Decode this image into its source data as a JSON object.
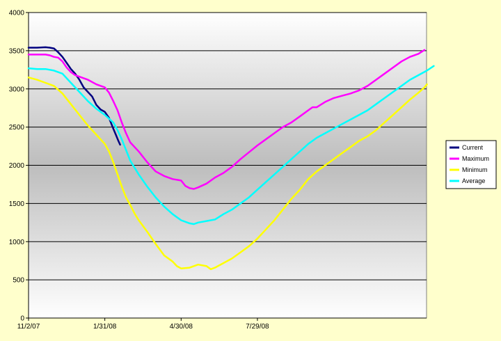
{
  "chart_data": {
    "type": "line",
    "title": "",
    "xlabel": "",
    "ylabel": "",
    "ylim": [
      0,
      4000
    ],
    "yticks": [
      0,
      500,
      1000,
      1500,
      2000,
      2500,
      3000,
      3500,
      4000
    ],
    "xticks": [
      {
        "label": "11/2/07",
        "day": 0
      },
      {
        "label": "1/31/08",
        "day": 90
      },
      {
        "label": "4/30/08",
        "day": 180
      },
      {
        "label": "7/29/08",
        "day": 270
      }
    ],
    "xlim_days": [
      0,
      380
    ],
    "grid": "horizontal",
    "legend_position": "right",
    "series": [
      {
        "name": "Current",
        "color": "#000080",
        "points": [
          [
            0,
            3540
          ],
          [
            10,
            3540
          ],
          [
            20,
            3545
          ],
          [
            25,
            3540
          ],
          [
            30,
            3530
          ],
          [
            35,
            3480
          ],
          [
            40,
            3420
          ],
          [
            45,
            3340
          ],
          [
            50,
            3260
          ],
          [
            55,
            3200
          ],
          [
            60,
            3120
          ],
          [
            65,
            3020
          ],
          [
            70,
            2960
          ],
          [
            75,
            2900
          ],
          [
            80,
            2790
          ],
          [
            85,
            2730
          ],
          [
            90,
            2700
          ],
          [
            95,
            2620
          ],
          [
            100,
            2480
          ],
          [
            103,
            2400
          ],
          [
            106,
            2320
          ],
          [
            108,
            2270
          ]
        ]
      },
      {
        "name": "Maximum",
        "color": "#ff00ff",
        "points": [
          [
            0,
            3450
          ],
          [
            10,
            3450
          ],
          [
            20,
            3450
          ],
          [
            25,
            3440
          ],
          [
            30,
            3420
          ],
          [
            35,
            3410
          ],
          [
            40,
            3360
          ],
          [
            45,
            3280
          ],
          [
            50,
            3220
          ],
          [
            55,
            3180
          ],
          [
            60,
            3160
          ],
          [
            70,
            3120
          ],
          [
            80,
            3060
          ],
          [
            90,
            3020
          ],
          [
            95,
            2950
          ],
          [
            100,
            2840
          ],
          [
            105,
            2720
          ],
          [
            110,
            2560
          ],
          [
            115,
            2420
          ],
          [
            120,
            2300
          ],
          [
            130,
            2180
          ],
          [
            140,
            2040
          ],
          [
            150,
            1920
          ],
          [
            160,
            1860
          ],
          [
            170,
            1820
          ],
          [
            180,
            1800
          ],
          [
            185,
            1730
          ],
          [
            190,
            1700
          ],
          [
            195,
            1690
          ],
          [
            200,
            1710
          ],
          [
            210,
            1760
          ],
          [
            220,
            1840
          ],
          [
            230,
            1900
          ],
          [
            240,
            1980
          ],
          [
            250,
            2080
          ],
          [
            260,
            2170
          ],
          [
            270,
            2260
          ],
          [
            280,
            2340
          ],
          [
            290,
            2420
          ],
          [
            300,
            2500
          ],
          [
            310,
            2560
          ],
          [
            320,
            2640
          ],
          [
            330,
            2720
          ],
          [
            335,
            2760
          ],
          [
            340,
            2760
          ],
          [
            350,
            2830
          ],
          [
            360,
            2880
          ],
          [
            370,
            2910
          ],
          [
            380,
            2940
          ],
          [
            390,
            2980
          ],
          [
            400,
            3040
          ],
          [
            410,
            3120
          ],
          [
            420,
            3200
          ],
          [
            430,
            3280
          ],
          [
            440,
            3360
          ],
          [
            450,
            3420
          ],
          [
            460,
            3460
          ],
          [
            467,
            3510
          ]
        ]
      },
      {
        "name": "Minimum",
        "color": "#ffff00",
        "points": [
          [
            0,
            3150
          ],
          [
            10,
            3120
          ],
          [
            20,
            3080
          ],
          [
            30,
            3040
          ],
          [
            40,
            2940
          ],
          [
            50,
            2800
          ],
          [
            60,
            2660
          ],
          [
            70,
            2520
          ],
          [
            80,
            2400
          ],
          [
            90,
            2280
          ],
          [
            95,
            2180
          ],
          [
            100,
            2040
          ],
          [
            105,
            1880
          ],
          [
            110,
            1720
          ],
          [
            115,
            1580
          ],
          [
            120,
            1480
          ],
          [
            125,
            1370
          ],
          [
            130,
            1280
          ],
          [
            140,
            1130
          ],
          [
            150,
            970
          ],
          [
            160,
            820
          ],
          [
            170,
            740
          ],
          [
            175,
            680
          ],
          [
            180,
            650
          ],
          [
            190,
            660
          ],
          [
            200,
            700
          ],
          [
            210,
            680
          ],
          [
            215,
            640
          ],
          [
            220,
            660
          ],
          [
            230,
            720
          ],
          [
            240,
            780
          ],
          [
            250,
            860
          ],
          [
            260,
            940
          ],
          [
            270,
            1040
          ],
          [
            280,
            1160
          ],
          [
            290,
            1280
          ],
          [
            300,
            1420
          ],
          [
            310,
            1560
          ],
          [
            320,
            1680
          ],
          [
            330,
            1820
          ],
          [
            340,
            1920
          ],
          [
            350,
            2000
          ],
          [
            360,
            2080
          ],
          [
            370,
            2160
          ],
          [
            380,
            2240
          ],
          [
            390,
            2320
          ],
          [
            400,
            2380
          ],
          [
            410,
            2460
          ],
          [
            420,
            2560
          ],
          [
            430,
            2660
          ],
          [
            440,
            2760
          ],
          [
            450,
            2860
          ],
          [
            460,
            2950
          ],
          [
            467,
            3020
          ],
          [
            470,
            3060
          ]
        ]
      },
      {
        "name": "Average",
        "color": "#00ffff",
        "points": [
          [
            0,
            3270
          ],
          [
            10,
            3260
          ],
          [
            20,
            3260
          ],
          [
            30,
            3240
          ],
          [
            40,
            3200
          ],
          [
            50,
            3080
          ],
          [
            60,
            2960
          ],
          [
            70,
            2840
          ],
          [
            80,
            2740
          ],
          [
            90,
            2660
          ],
          [
            100,
            2560
          ],
          [
            105,
            2460
          ],
          [
            110,
            2340
          ],
          [
            115,
            2200
          ],
          [
            120,
            2060
          ],
          [
            130,
            1880
          ],
          [
            140,
            1720
          ],
          [
            150,
            1580
          ],
          [
            160,
            1460
          ],
          [
            170,
            1360
          ],
          [
            180,
            1280
          ],
          [
            190,
            1240
          ],
          [
            195,
            1230
          ],
          [
            200,
            1250
          ],
          [
            210,
            1270
          ],
          [
            215,
            1280
          ],
          [
            220,
            1290
          ],
          [
            230,
            1360
          ],
          [
            240,
            1420
          ],
          [
            250,
            1500
          ],
          [
            260,
            1580
          ],
          [
            270,
            1680
          ],
          [
            280,
            1780
          ],
          [
            290,
            1880
          ],
          [
            300,
            1980
          ],
          [
            310,
            2080
          ],
          [
            320,
            2180
          ],
          [
            330,
            2280
          ],
          [
            340,
            2360
          ],
          [
            350,
            2420
          ],
          [
            360,
            2480
          ],
          [
            370,
            2540
          ],
          [
            380,
            2600
          ],
          [
            390,
            2660
          ],
          [
            400,
            2720
          ],
          [
            410,
            2800
          ],
          [
            420,
            2880
          ],
          [
            430,
            2960
          ],
          [
            440,
            3040
          ],
          [
            450,
            3120
          ],
          [
            460,
            3180
          ],
          [
            470,
            3240
          ],
          [
            478,
            3300
          ]
        ]
      }
    ]
  }
}
